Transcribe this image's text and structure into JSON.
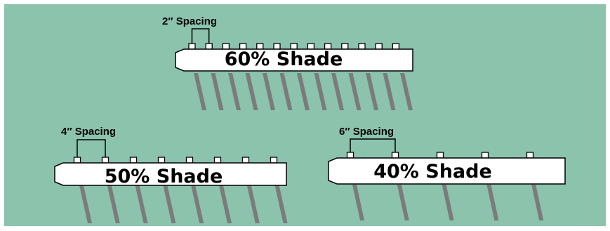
{
  "colors": {
    "panel_background": "#8bc3ad",
    "page_background": "#ffffff",
    "strip_fill": "#ffffff",
    "outline": "#000000",
    "stripe": "#7b7b7b"
  },
  "panels": [
    {
      "spacing_label": "2″ Spacing",
      "shade_label": "60% Shade",
      "teeth_count": 13,
      "stripe_count": 13
    },
    {
      "spacing_label": "4″ Spacing",
      "shade_label": "50% Shade",
      "teeth_count": 8,
      "stripe_count": 8
    },
    {
      "spacing_label": "6″ Spacing",
      "shade_label": "40% Shade",
      "teeth_count": 5,
      "stripe_count": 5
    }
  ]
}
